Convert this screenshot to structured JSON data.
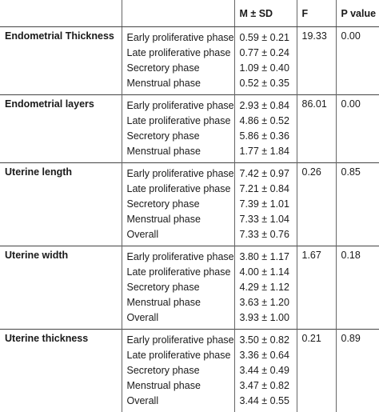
{
  "header": {
    "col1": "",
    "col2": "",
    "col3": "M ± SD",
    "col4": "F",
    "col5": "P value"
  },
  "groups": [
    {
      "parameter": "Endometrial Thickness",
      "phases": [
        "Early proliferative phase",
        "Late proliferative phase",
        "Secretory phase",
        "Menstrual phase"
      ],
      "msd": [
        "0.59 ± 0.21",
        "0.77 ± 0.24",
        "1.09 ± 0.40",
        "0.52 ± 0.35"
      ],
      "f": "19.33",
      "p": "0.00"
    },
    {
      "parameter": "Endometrial layers",
      "phases": [
        "Early proliferative phase",
        "Late proliferative phase",
        "Secretory phase",
        "Menstrual phase"
      ],
      "msd": [
        "2.93 ± 0.84",
        "4.86 ± 0.52",
        "5.86 ± 0.36",
        "1.77 ± 1.84"
      ],
      "f": "86.01",
      "p": "0.00"
    },
    {
      "parameter": "Uterine length",
      "phases": [
        "Early proliferative phase",
        "Late proliferative phase",
        "Secretory phase",
        "Menstrual phase",
        "Overall"
      ],
      "msd": [
        "7.42 ± 0.97",
        "7.21 ± 0.84",
        "7.39 ± 1.01",
        "7.33 ± 1.04",
        "7.33 ± 0.76"
      ],
      "f": "0.26",
      "p": "0.85"
    },
    {
      "parameter": "Uterine width",
      "phases": [
        "Early proliferative phase",
        "Late proliferative phase",
        "Secretory phase",
        "Menstrual phase",
        "Overall"
      ],
      "msd": [
        "3.80 ± 1.17",
        "4.00 ± 1.14",
        "4.29 ± 1.12",
        "3.63 ± 1.20",
        "3.93 ± 1.00"
      ],
      "f": "1.67",
      "p": "0.18"
    },
    {
      "parameter": "Uterine thickness",
      "phases": [
        "Early proliferative phase",
        "Late proliferative phase",
        "Secretory phase",
        "Menstrual phase",
        "Overall"
      ],
      "msd": [
        "3.50 ± 0.82",
        "3.36 ± 0.64",
        "3.44 ± 0.49",
        "3.47 ± 0.82",
        "3.44 ± 0.55"
      ],
      "f": "0.21",
      "p": "0.89"
    }
  ]
}
